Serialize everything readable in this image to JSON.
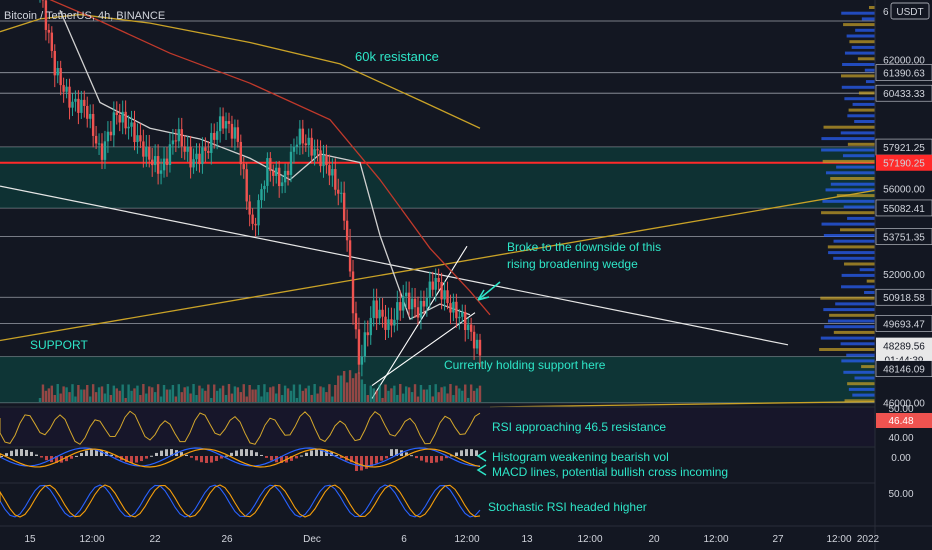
{
  "header": {
    "symbol": "Bitcoin / TetherUS, 4h, BINANCE",
    "currency_button": "USDT",
    "top_level_label": "6"
  },
  "colors": {
    "background": "#131722",
    "up_candle": "#26a69a",
    "down_candle": "#ef5350",
    "accent_text": "#2ee6c8",
    "support_zone": "#0e3b3a",
    "resistance_line": "#ff2a2a",
    "ma_yellow": "#c9a227",
    "ma_red": "#c0392b",
    "ma_white": "#d0d0d0",
    "price_tag": "#26a69a",
    "current_price_tag_bg": "#e8e8e8",
    "rsi_tag_bg": "#ef5350"
  },
  "chart_data": {
    "type": "candlestick",
    "title": "Bitcoin / TetherUS, 4h, BINANCE",
    "y_axis_price_labels": [
      "62000.00",
      "61390.63",
      "60433.33",
      "57921.25",
      "57190.25",
      "56000.00",
      "55082.41",
      "53751.35",
      "52000.00",
      "50918.58",
      "49693.47",
      "48289.56",
      "01:44:39",
      "48146.09",
      "46000.00"
    ],
    "price_levels": [
      63800,
      61390.63,
      60433.33,
      57921.25,
      57190.25,
      55082.41,
      53751.35,
      50918.58,
      49693.47,
      48146.09,
      46000
    ],
    "resistance_level": 57190.25,
    "support_range": [
      46000,
      48146.09
    ],
    "current_price": 48289.56,
    "countdown": "01:44:39",
    "ylim": [
      45800,
      64500
    ],
    "x_ticks": [
      "15",
      "12:00",
      "22",
      "26",
      "Dec",
      "6",
      "12:00",
      "13",
      "12:00",
      "20",
      "12:00",
      "27",
      "12:00",
      "2022"
    ],
    "annotations": [
      "60k resistance",
      "Broke to the downside of this",
      "rising broadening wedge",
      "SUPPORT",
      "Currently holding support here",
      "RSI approaching 46.5 resistance",
      "Histogram weakening bearish vol",
      "MACD lines, potential bullish cross incoming",
      "Stochastic RSI headed higher"
    ],
    "series": [
      {
        "name": "Price (approx. close path)",
        "values": [
          65200,
          61500,
          60000,
          59800,
          57500,
          59500,
          58800,
          57600,
          56800,
          58600,
          57200,
          57800,
          59200,
          58400,
          54000,
          57100,
          56200,
          58500,
          57800,
          57000,
          55200,
          47800,
          50500,
          49500,
          51000,
          50200,
          51800,
          50500,
          49800,
          48300
        ]
      }
    ],
    "rsi": {
      "value": "46.48",
      "axis_labels": [
        "50.00",
        "40.00"
      ]
    },
    "macd": {
      "axis_labels": [
        "0.00"
      ]
    },
    "stoch_rsi": {
      "axis_labels": [
        "50.00"
      ]
    }
  }
}
